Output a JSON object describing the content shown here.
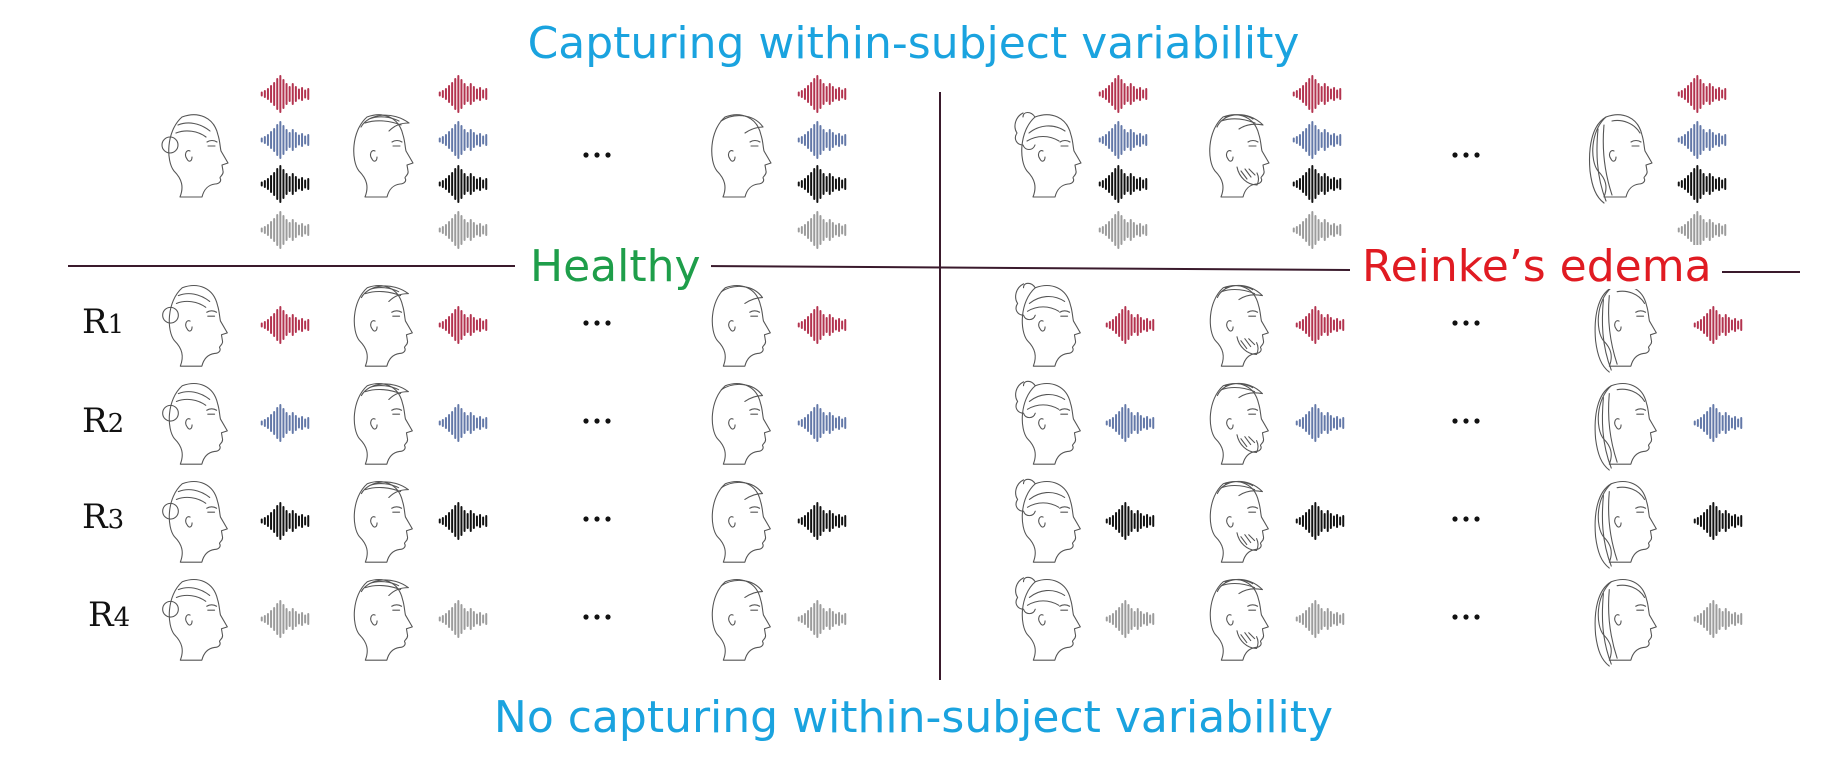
{
  "titles": {
    "top": "Capturing within-subject variability",
    "bottom": "No capturing within-subject variability"
  },
  "groups": [
    {
      "label": "Healthy",
      "color": "#1e9e4a"
    },
    {
      "label": "Reinke’s edema",
      "color": "#e01b22"
    }
  ],
  "title_color": "#1aa3df",
  "divider_color": "#3a1a2c",
  "recordings": [
    {
      "letter": "R",
      "num": "1",
      "color": "#b3334f"
    },
    {
      "letter": "R",
      "num": "2",
      "color": "#6378a8"
    },
    {
      "letter": "R",
      "num": "3",
      "color": "#111111"
    },
    {
      "letter": "R",
      "num": "4",
      "color": "#9c9c9c"
    }
  ],
  "ellipsis": "...",
  "subjects": {
    "healthy": [
      "woman-bun-face-icon",
      "man-short-hair-face-icon",
      "man-face-icon"
    ],
    "edema": [
      "woman-curly-hair-face-icon",
      "man-beard-face-icon",
      "woman-long-hair-face-icon"
    ]
  }
}
